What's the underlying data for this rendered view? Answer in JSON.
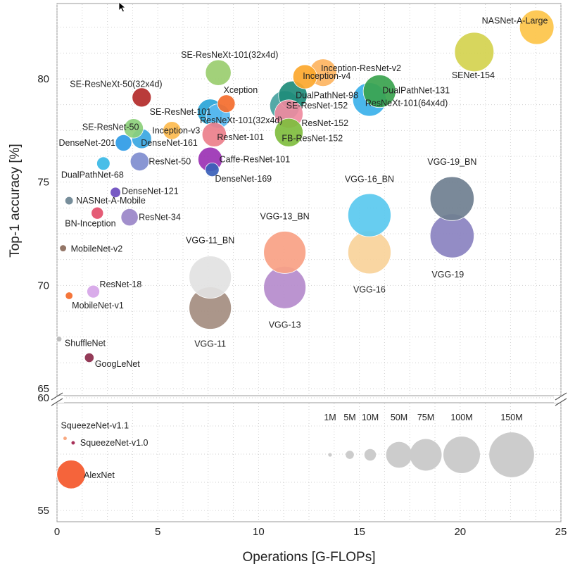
{
  "chart_data": {
    "type": "scatter",
    "title": "",
    "xlabel": "Operations [G-FLOPs]",
    "ylabel": "Top-1 accuracy [%]",
    "xlim": [
      0,
      25
    ],
    "ylim_upper": [
      65,
      83
    ],
    "ylim_lower": [
      55,
      60
    ],
    "x_ticks": [
      "0",
      "5",
      "10",
      "15",
      "20",
      "25"
    ],
    "y_ticks_upper": [
      "65",
      "70",
      "75",
      "80"
    ],
    "y_ticks_lower": [
      "55",
      "60"
    ],
    "grid": true,
    "points": [
      {
        "label": "NASNet-A-Large",
        "x": 23.8,
        "y": 82.5,
        "params": 88,
        "color": "#fdc449"
      },
      {
        "label": "SENet-154",
        "x": 20.7,
        "y": 81.3,
        "params": 115,
        "color": "#d4d24f"
      },
      {
        "label": "SE-ResNeXt-101(32x4d)",
        "x": 8.0,
        "y": 80.3,
        "params": 49,
        "color": "#9acd6f"
      },
      {
        "label": "Inception-ResNet-v2",
        "x": 13.2,
        "y": 80.3,
        "params": 56,
        "color": "#fdb461"
      },
      {
        "label": "Inception-v4",
        "x": 12.3,
        "y": 80.1,
        "params": 43,
        "color": "#fca72d"
      },
      {
        "label": "DualPathNet-131",
        "x": 16.0,
        "y": 79.4,
        "params": 79,
        "color": "#3aa34e"
      },
      {
        "label": "DualPathNet-98",
        "x": 11.7,
        "y": 79.2,
        "params": 61,
        "color": "#1e8c7a"
      },
      {
        "label": "SE-ResNeXt-50(32x4d)",
        "x": 4.2,
        "y": 79.1,
        "params": 27,
        "color": "#b32a29"
      },
      {
        "label": "ResNeXt-101(64x4d)",
        "x": 15.5,
        "y": 79.0,
        "params": 83,
        "color": "#3bb1ea"
      },
      {
        "label": "Xception",
        "x": 8.4,
        "y": 78.8,
        "params": 23,
        "color": "#f46c2d"
      },
      {
        "label": "SE-ResNet-152",
        "x": 11.3,
        "y": 78.7,
        "params": 67,
        "color": "#46a29f"
      },
      {
        "label": "SE-ResNet-101",
        "x": 7.6,
        "y": 78.4,
        "params": 49,
        "color": "#2aa5d8"
      },
      {
        "label": "ResNet-152",
        "x": 11.5,
        "y": 78.3,
        "params": 60,
        "color": "#ef8ba0"
      },
      {
        "label": "ResNeXt-101(32x4d)",
        "x": 8.0,
        "y": 78.2,
        "params": 44,
        "color": "#5ab8f0"
      },
      {
        "label": "SE-ResNet-50",
        "x": 3.8,
        "y": 77.6,
        "params": 28,
        "color": "#8ccf7b"
      },
      {
        "label": "Inception-v3",
        "x": 5.7,
        "y": 77.5,
        "params": 24,
        "color": "#fdbb4f"
      },
      {
        "label": "FB-ResNet-152",
        "x": 11.5,
        "y": 77.4,
        "params": 60,
        "color": "#7fbd3e"
      },
      {
        "label": "ResNet-101",
        "x": 7.8,
        "y": 77.3,
        "params": 44,
        "color": "#ec7f8b"
      },
      {
        "label": "DenseNet-161",
        "x": 4.2,
        "y": 77.1,
        "params": 29,
        "color": "#3aa7e2"
      },
      {
        "label": "DenseNet-201",
        "x": 3.3,
        "y": 76.9,
        "params": 20,
        "color": "#2e9be6"
      },
      {
        "label": "Caffe-ResNet-101",
        "x": 7.6,
        "y": 76.1,
        "params": 44,
        "color": "#9b32b4"
      },
      {
        "label": "ResNet-50",
        "x": 4.1,
        "y": 76.0,
        "params": 26,
        "color": "#7f8dcf"
      },
      {
        "label": "DualPathNet-68",
        "x": 2.3,
        "y": 75.9,
        "params": 13,
        "color": "#3ab8e6"
      },
      {
        "label": "DenseNet-169",
        "x": 7.7,
        "y": 75.6,
        "params": 14,
        "color": "#3a5fb8"
      },
      {
        "label": "DenseNet-121",
        "x": 2.9,
        "y": 74.5,
        "params": 8,
        "color": "#6b4cbf"
      },
      {
        "label": "NASNet-A-Mobile",
        "x": 0.6,
        "y": 74.1,
        "params": 5,
        "color": "#6b8493"
      },
      {
        "label": "BN-Inception",
        "x": 2.0,
        "y": 73.5,
        "params": 11,
        "color": "#e34e6a"
      },
      {
        "label": "ResNet-34",
        "x": 3.6,
        "y": 73.3,
        "params": 22,
        "color": "#9a86c8"
      },
      {
        "label": "MobileNet-v2",
        "x": 0.3,
        "y": 71.8,
        "params": 3.5,
        "color": "#8b6a5a"
      },
      {
        "label": "ResNet-18",
        "x": 1.8,
        "y": 69.7,
        "params": 12,
        "color": "#d6a5e8"
      },
      {
        "label": "MobileNet-v1",
        "x": 0.6,
        "y": 69.5,
        "params": 4.2,
        "color": "#f46a2a"
      },
      {
        "label": "ShuffleNet",
        "x": 0.1,
        "y": 67.4,
        "params": 2.3,
        "color": "#b8b8b8"
      },
      {
        "label": "GoogLeNet",
        "x": 1.6,
        "y": 66.5,
        "params": 6.6,
        "color": "#8b2a4a"
      },
      {
        "label": "VGG-19",
        "x": 19.6,
        "y": 72.4,
        "params": 144,
        "color": "#8a82c0"
      },
      {
        "label": "VGG-19_BN",
        "x": 19.6,
        "y": 74.2,
        "params": 144,
        "color": "#6f7f90"
      },
      {
        "label": "VGG-16",
        "x": 15.5,
        "y": 71.6,
        "params": 138,
        "color": "#f9d39a"
      },
      {
        "label": "VGG-16_BN",
        "x": 15.5,
        "y": 73.4,
        "params": 138,
        "color": "#5ac9ef"
      },
      {
        "label": "VGG-13",
        "x": 11.3,
        "y": 69.9,
        "params": 133,
        "color": "#b58bcc"
      },
      {
        "label": "VGG-13_BN",
        "x": 11.3,
        "y": 71.6,
        "params": 133,
        "color": "#f9a184"
      },
      {
        "label": "VGG-11",
        "x": 7.6,
        "y": 68.9,
        "params": 133,
        "color": "#a48d80"
      },
      {
        "label": "VGG-11_BN",
        "x": 7.6,
        "y": 70.4,
        "params": 133,
        "color": "#e2e2e2"
      },
      {
        "label": "SqueezeNet-v1.1",
        "x": 0.4,
        "y": 58.2,
        "params": 1.2,
        "color": "#f9a174"
      },
      {
        "label": "SqueezeNet-v1.0",
        "x": 0.8,
        "y": 58.0,
        "params": 1.2,
        "color": "#a01e4a"
      },
      {
        "label": "AlexNet",
        "x": 0.7,
        "y": 56.6,
        "params": 61,
        "color": "#f4572a"
      }
    ],
    "size_legend": [
      {
        "label": "1M",
        "params": 1
      },
      {
        "label": "5M",
        "params": 5
      },
      {
        "label": "10M",
        "params": 10
      },
      {
        "label": "50M",
        "params": 50
      },
      {
        "label": "75M",
        "params": 75
      },
      {
        "label": "100M",
        "params": 100
      },
      {
        "label": "150M",
        "params": 150
      }
    ],
    "size_legend_color": "#cccccc"
  }
}
